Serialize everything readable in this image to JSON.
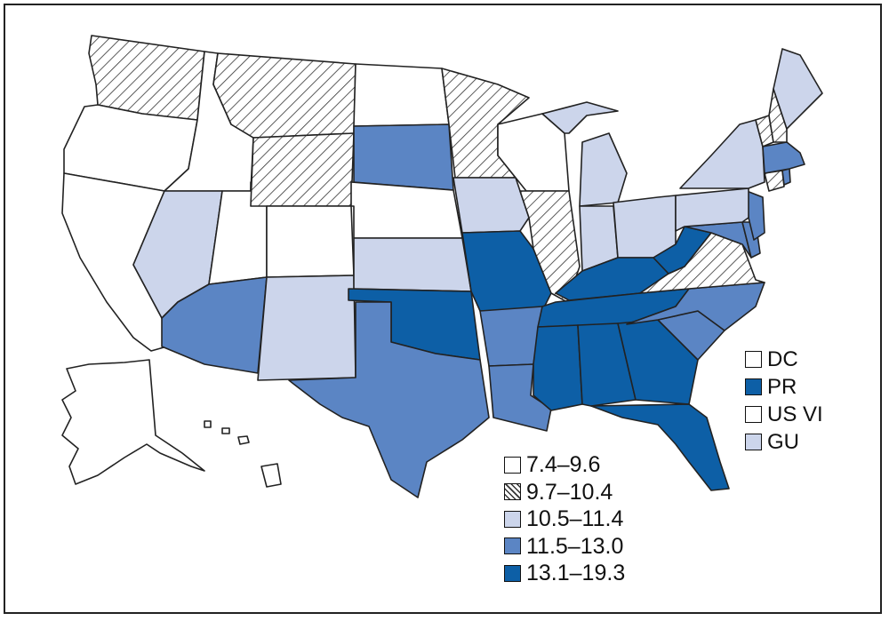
{
  "colors": {
    "c1": "#ffffff",
    "c3": "#ccd5eb",
    "c4": "#5b85c4",
    "c5": "#0d5fa6",
    "border": "#222222"
  },
  "legend_ranges": [
    {
      "label": "7.4–9.6",
      "cls": "c1"
    },
    {
      "label": "9.7–10.4",
      "cls": "c2"
    },
    {
      "label": "10.5–11.4",
      "cls": "c3"
    },
    {
      "label": "11.5–13.0",
      "cls": "c4"
    },
    {
      "label": "13.1–19.3",
      "cls": "c5"
    }
  ],
  "legend_territories": [
    {
      "label": "DC",
      "cls": "c1"
    },
    {
      "label": "PR",
      "cls": "c5"
    },
    {
      "label": "US VI",
      "cls": "c1"
    },
    {
      "label": "GU",
      "cls": "c3"
    }
  ],
  "states": {
    "WA": "c2",
    "OR": "c1",
    "CA": "c1",
    "ID": "c1",
    "NV": "c3",
    "UT": "c1",
    "AZ": "c4",
    "MT": "c2",
    "WY": "c2",
    "CO": "c1",
    "NM": "c3",
    "ND": "c1",
    "SD": "c4",
    "NE": "c1",
    "KS": "c3",
    "OK": "c5",
    "TX": "c4",
    "MN": "c2",
    "IA": "c3",
    "MO": "c5",
    "AR": "c4",
    "LA": "c4",
    "WI": "c1",
    "IL": "c2",
    "MI": "c3",
    "IN": "c3",
    "OH": "c3",
    "KY": "c5",
    "TN": "c5",
    "MS": "c5",
    "AL": "c5",
    "GA": "c5",
    "FL": "c5",
    "SC": "c4",
    "NC": "c4",
    "VA": "c2",
    "WV": "c5",
    "MD": "c4",
    "DE": "c4",
    "NJ": "c4",
    "PA": "c3",
    "NY": "c3",
    "CT": "c2",
    "RI": "c4",
    "MA": "c4",
    "VT": "c2",
    "NH": "c2",
    "ME": "c3",
    "AK": "c1",
    "HI": "c1"
  }
}
